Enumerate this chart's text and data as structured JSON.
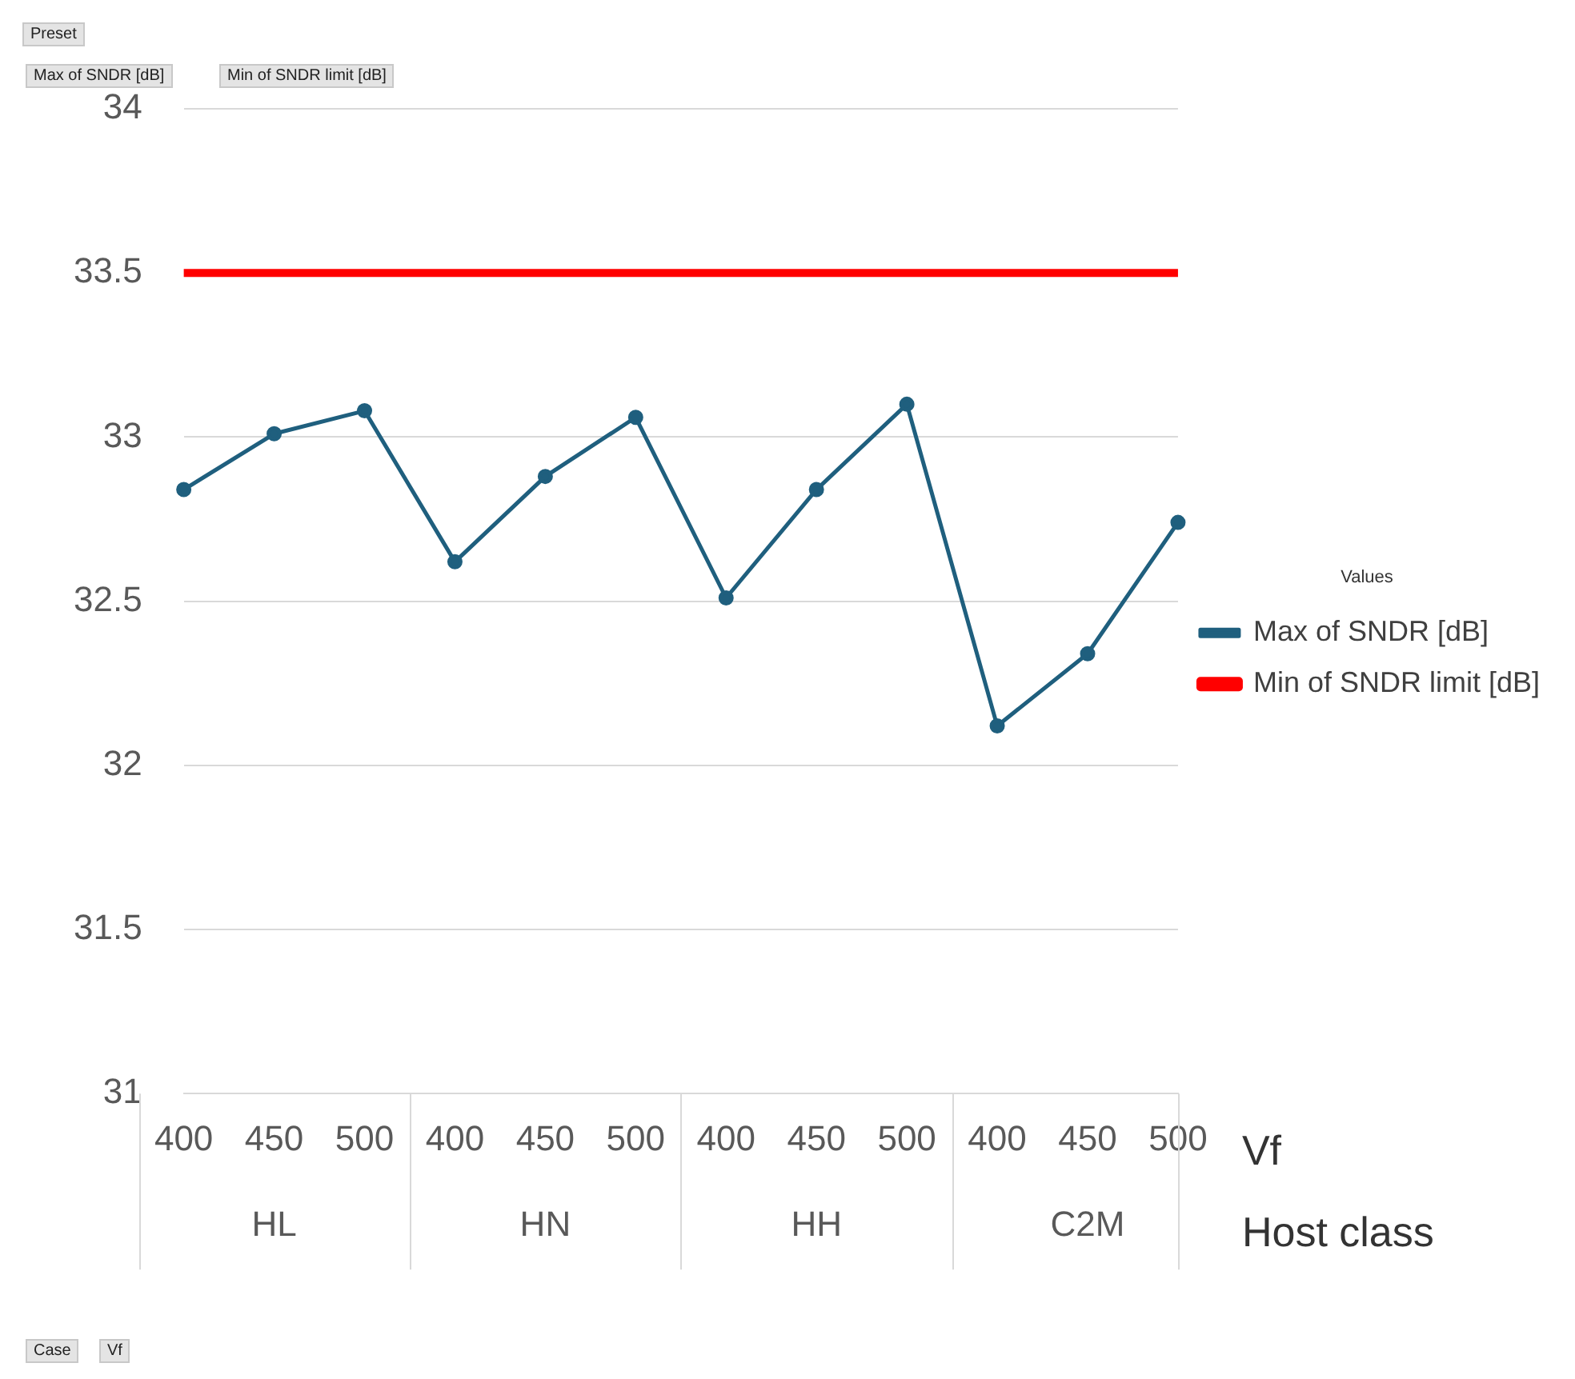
{
  "chart_data": {
    "type": "line",
    "categories": [
      "400",
      "450",
      "500",
      "400",
      "450",
      "500",
      "400",
      "450",
      "500",
      "400",
      "450",
      "500"
    ],
    "series": [
      {
        "name": "Max of SNDR [dB]",
        "color": "#1f5f7e",
        "values": [
          32.84,
          33.01,
          33.08,
          32.62,
          32.88,
          33.06,
          32.51,
          32.84,
          33.1,
          32.12,
          32.34,
          32.74
        ],
        "marker": "circle"
      },
      {
        "name": "Min of SNDR limit [dB]",
        "color": "#ff0000",
        "values": [
          33.5,
          33.5,
          33.5,
          33.5,
          33.5,
          33.5,
          33.5,
          33.5,
          33.5,
          33.5,
          33.5,
          33.5
        ],
        "marker": "none"
      }
    ],
    "ylim": [
      31,
      34
    ],
    "yticks": [
      31,
      31.5,
      32,
      32.5,
      33,
      33.5,
      34
    ],
    "grid": "y",
    "legend": "right",
    "legend_title": "Values",
    "xlabel": "Vf",
    "annotations": [
      "HL",
      "HN",
      "HH",
      "C2M",
      "Host class",
      "Preset",
      "Max of SNDR [dB]",
      "Min of SNDR limit [dB]",
      "Case",
      "Vf"
    ]
  }
}
